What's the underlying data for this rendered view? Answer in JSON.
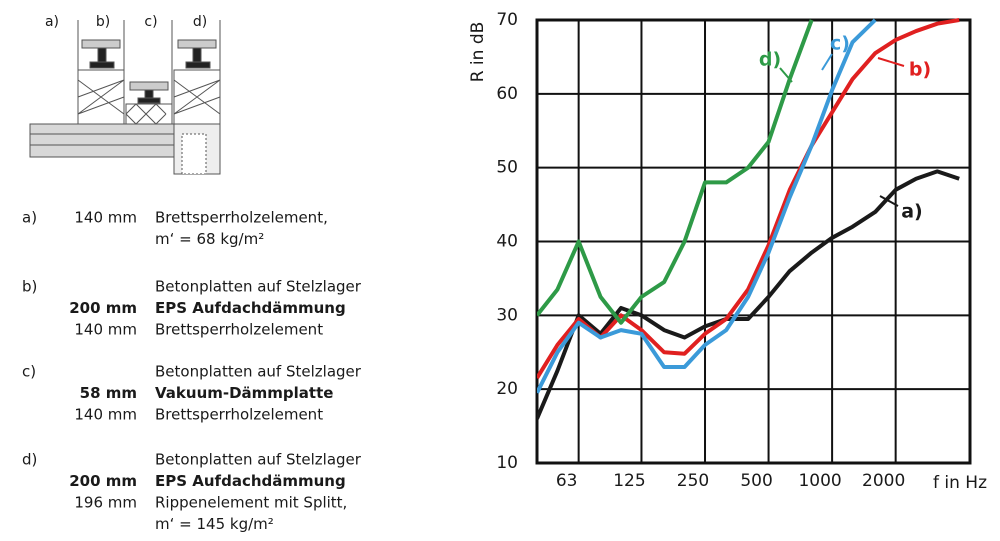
{
  "diagram": {
    "labels": [
      "a)",
      "b)",
      "c)",
      "d)"
    ]
  },
  "legend": [
    {
      "label": "a)",
      "lines": [
        {
          "thickness": "140 mm",
          "text": "Brettsperrholzelement,"
        },
        {
          "text": "m‘ = 68 kg/m²"
        }
      ]
    },
    {
      "label": "b)",
      "lines": [
        {
          "text": "Betonplatten auf Stelzlager"
        },
        {
          "thickness": "200 mm",
          "text": "EPS Aufdachdämmung",
          "bold": true
        },
        {
          "thickness": "140 mm",
          "text": "Brettsperrholzelement"
        }
      ]
    },
    {
      "label": "c)",
      "lines": [
        {
          "text": "Betonplatten auf Stelzlager"
        },
        {
          "thickness": "58 mm",
          "text": "Vakuum-Dämmplatte",
          "bold": true
        },
        {
          "thickness": "140 mm",
          "text": "Brettsperrholzelement"
        }
      ]
    },
    {
      "label": "d)",
      "lines": [
        {
          "text": "Betonplatten auf Stelzlager"
        },
        {
          "thickness": "200 mm",
          "text": "EPS Aufdachdämmung",
          "bold": true
        },
        {
          "thickness": "196 mm",
          "text": "Rippenelement mit Splitt,"
        },
        {
          "text": "m‘ = 145 kg/m²"
        }
      ]
    }
  ],
  "chart_data": {
    "type": "line",
    "xlabel": "f in Hz",
    "ylabel": "R in dB",
    "xscale": "log",
    "xlim": [
      40,
      4500
    ],
    "xticks": [
      63,
      125,
      250,
      500,
      1000,
      2000
    ],
    "ylim": [
      10,
      70
    ],
    "yticks": [
      10,
      20,
      30,
      40,
      50,
      60,
      70
    ],
    "grid": true,
    "x": [
      40,
      50,
      63,
      80,
      100,
      125,
      160,
      200,
      250,
      315,
      400,
      500,
      630,
      800,
      1000,
      1250,
      1600,
      2000,
      2500,
      3150,
      4000
    ],
    "series": [
      {
        "name": "a)",
        "color": "#1a1a1a",
        "values": [
          16,
          22.5,
          30,
          27.5,
          31,
          30,
          28,
          27,
          28.5,
          29.5,
          29.5,
          32.5,
          36,
          38.5,
          40.5,
          42,
          44,
          47,
          48.5,
          49.5,
          48.5
        ]
      },
      {
        "name": "b)",
        "color": "#e02020",
        "values": [
          21.5,
          26,
          29.5,
          27,
          30,
          28,
          25,
          24.8,
          27.5,
          29.5,
          33.5,
          39.5,
          47,
          53,
          57.5,
          62,
          65.5,
          67.3,
          68.5,
          69.5,
          70
        ]
      },
      {
        "name": "c)",
        "color": "#3b9ad9",
        "values": [
          19.5,
          25,
          29,
          27,
          28,
          27.5,
          23,
          23,
          26,
          28,
          32.5,
          38.5,
          46,
          53,
          60.5,
          67,
          70,
          null,
          null,
          null,
          null
        ]
      },
      {
        "name": "d)",
        "color": "#2e9a47",
        "values": [
          30,
          33.5,
          40,
          32.5,
          29,
          32.5,
          34.5,
          40,
          48,
          48,
          50,
          53.5,
          62,
          70,
          null,
          null,
          null,
          null,
          null,
          null,
          null
        ]
      }
    ]
  }
}
